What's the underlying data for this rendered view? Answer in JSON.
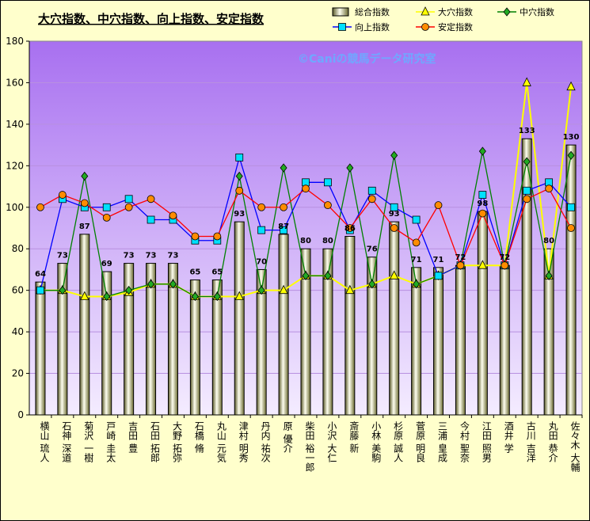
{
  "chart_data": {
    "type": "bar",
    "title": "大穴指数、中穴指数、向上指数、安定指数",
    "watermark": "©Caniの競馬データ研究室",
    "categories": [
      "横山 琉人",
      "石神 深道",
      "菊沢 一樹",
      "戸崎 圭太",
      "吉田 豊",
      "石田 拓郎",
      "大野 拓弥",
      "石橋 脩",
      "丸山 元気",
      "津村 明秀",
      "丹内 祐次",
      "原 優介",
      "柴田 裕一郎",
      "小沢 大仁",
      "斎藤 新",
      "小林 美駒",
      "杉原 誠人",
      "菅原 明良",
      "三浦 皇成",
      "今村 聖奈",
      "江田 照男",
      "酒井 学",
      "古川 吉洋",
      "丸田 恭介",
      "佐々木 大輔"
    ],
    "ylim": [
      0,
      180
    ],
    "yticks": [
      0,
      20,
      40,
      60,
      80,
      100,
      120,
      140,
      160,
      180
    ],
    "grid": true,
    "legend_position": "top-right",
    "series": [
      {
        "name": "総合指数",
        "kind": "bar",
        "values": [
          64,
          73,
          87,
          69,
          73,
          73,
          73,
          65,
          65,
          93,
          70,
          87,
          80,
          80,
          86,
          76,
          93,
          71,
          71,
          72,
          98,
          72,
          133,
          80,
          130
        ],
        "labels": [
          "64",
          "73",
          "87",
          "69",
          "73",
          "73",
          "73",
          "65",
          "65",
          "93",
          "70",
          "87",
          "80",
          "80",
          "86",
          "76",
          "93",
          "71",
          "71",
          "72",
          "98",
          "72",
          "133",
          "80",
          "130"
        ]
      },
      {
        "name": "大穴指数",
        "kind": "line",
        "color": "#ffff00",
        "marker": "triangle",
        "values": [
          60,
          60,
          57,
          57,
          59,
          63,
          63,
          57,
          57,
          57,
          60,
          60,
          67,
          67,
          60,
          63,
          67,
          63,
          67,
          72,
          72,
          72,
          160,
          67,
          158
        ]
      },
      {
        "name": "中穴指数",
        "kind": "line",
        "color": "#008000",
        "marker": "diamond",
        "values": [
          60,
          60,
          115,
          57,
          60,
          63,
          63,
          57,
          57,
          115,
          60,
          119,
          67,
          67,
          119,
          63,
          125,
          63,
          67,
          72,
          127,
          72,
          122,
          67,
          125
        ]
      },
      {
        "name": "向上指数",
        "kind": "line",
        "color": "#0000ff",
        "marker": "square",
        "values": [
          60,
          104,
          100,
          100,
          104,
          94,
          94,
          84,
          84,
          124,
          89,
          89,
          112,
          112,
          89,
          108,
          100,
          94,
          67,
          72,
          106,
          72,
          108,
          112,
          100
        ]
      },
      {
        "name": "安定指数",
        "kind": "line",
        "color": "#ff0000",
        "marker": "circle",
        "values": [
          100,
          106,
          102,
          95,
          100,
          104,
          96,
          86,
          86,
          108,
          100,
          100,
          109,
          101,
          90,
          104,
          90,
          83,
          101,
          72,
          97,
          72,
          104,
          109,
          90
        ]
      }
    ]
  }
}
